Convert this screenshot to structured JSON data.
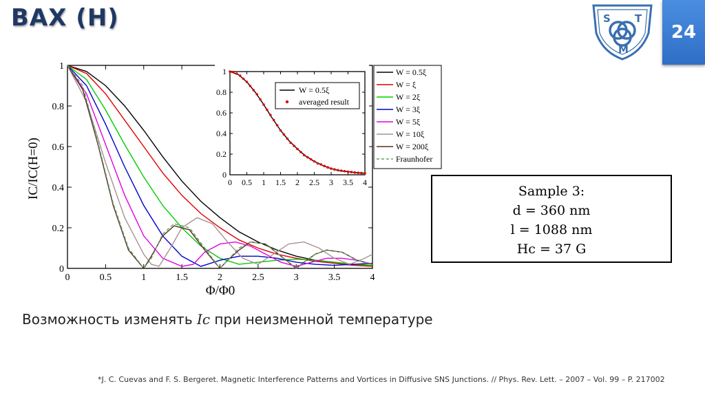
{
  "slide": {
    "title": "ВАХ (H)",
    "number": "24"
  },
  "logo": {
    "letters": [
      "S",
      "T",
      "M"
    ]
  },
  "sample": {
    "line1": "Sample 3:",
    "d": "d = 360 nm",
    "l": "l = 1088 nm",
    "h": "Hc = 37 G"
  },
  "caption": {
    "before": "Возможность изменять ",
    "symbol": "Ic",
    "after": " при неизменной температуре"
  },
  "reference": "*J. C. Cuevas and F. S. Bergeret. Magnetic Interference Patterns and Vortices in Diffusive SNS Junctions. // Phys. Rev. Lett. – 2007 – Vol. 99 – P. 217002",
  "colors": {
    "accent": "#3a7bd5",
    "title": "#1f3864"
  },
  "chart_data": [
    {
      "type": "line",
      "xlabel": "Φ/Φ0",
      "ylabel": "IC/IC(H=0)",
      "xlim": [
        0,
        4
      ],
      "ylim": [
        0,
        1
      ],
      "xticks": [
        "0",
        "0.5",
        "1",
        "1.5",
        "2",
        "2.5",
        "3",
        "3.5",
        "4"
      ],
      "yticks": [
        "0",
        "0.2",
        "0.4",
        "0.6",
        "0.8",
        "1"
      ],
      "legend_position": "right-outside",
      "series": [
        {
          "name": "W = 0.5ξ",
          "color": "#000000",
          "dash": false,
          "x": [
            0,
            0.25,
            0.5,
            0.75,
            1,
            1.25,
            1.5,
            1.75,
            2,
            2.25,
            2.5,
            2.75,
            3,
            3.25,
            3.5,
            3.75,
            4
          ],
          "y": [
            1,
            0.97,
            0.9,
            0.8,
            0.68,
            0.55,
            0.43,
            0.33,
            0.25,
            0.18,
            0.13,
            0.09,
            0.06,
            0.04,
            0.03,
            0.02,
            0.015
          ]
        },
        {
          "name": "W = ξ",
          "color": "#e00000",
          "dash": false,
          "x": [
            0,
            0.25,
            0.5,
            0.75,
            1,
            1.25,
            1.5,
            1.75,
            2,
            2.25,
            2.5,
            2.75,
            3,
            3.25,
            3.5,
            3.75,
            4
          ],
          "y": [
            1,
            0.96,
            0.86,
            0.73,
            0.6,
            0.47,
            0.36,
            0.27,
            0.2,
            0.14,
            0.1,
            0.07,
            0.05,
            0.035,
            0.025,
            0.015,
            0.01
          ]
        },
        {
          "name": "W = 2ξ",
          "color": "#00cc00",
          "dash": false,
          "x": [
            0,
            0.25,
            0.5,
            0.75,
            1,
            1.25,
            1.5,
            1.75,
            2,
            2.25,
            2.5,
            2.75,
            3,
            3.25,
            3.5,
            3.75,
            4
          ],
          "y": [
            1,
            0.93,
            0.78,
            0.61,
            0.45,
            0.31,
            0.2,
            0.11,
            0.05,
            0.02,
            0.03,
            0.04,
            0.045,
            0.04,
            0.03,
            0.02,
            0.015
          ]
        },
        {
          "name": "W = 3ξ",
          "color": "#0000cc",
          "dash": false,
          "x": [
            0,
            0.25,
            0.5,
            0.75,
            1,
            1.25,
            1.5,
            1.75,
            2,
            2.25,
            2.5,
            2.75,
            3,
            3.25,
            3.5,
            3.75,
            4
          ],
          "y": [
            1,
            0.9,
            0.71,
            0.5,
            0.31,
            0.16,
            0.06,
            0.01,
            0.04,
            0.06,
            0.06,
            0.05,
            0.03,
            0.02,
            0.015,
            0.02,
            0.025
          ]
        },
        {
          "name": "W = 5ξ",
          "color": "#e000e0",
          "dash": false,
          "x": [
            0,
            0.25,
            0.5,
            0.75,
            1,
            1.25,
            1.5,
            1.65,
            1.8,
            2,
            2.2,
            2.4,
            2.6,
            2.8,
            3,
            3.2,
            3.4,
            3.6,
            3.8,
            4
          ],
          "y": [
            1,
            0.86,
            0.61,
            0.36,
            0.16,
            0.05,
            0.01,
            0.02,
            0.08,
            0.12,
            0.13,
            0.11,
            0.07,
            0.03,
            0.01,
            0.03,
            0.05,
            0.05,
            0.04,
            0.02
          ]
        },
        {
          "name": "W = 10ξ",
          "color": "#a89090",
          "dash": false,
          "x": [
            0,
            0.25,
            0.5,
            0.75,
            1,
            1.1,
            1.2,
            1.35,
            1.5,
            1.7,
            1.9,
            2.1,
            2.3,
            2.5,
            2.7,
            2.9,
            3.1,
            3.3,
            3.5,
            3.7,
            3.9,
            4
          ],
          "y": [
            1,
            0.82,
            0.52,
            0.25,
            0.07,
            0.02,
            0.01,
            0.1,
            0.2,
            0.25,
            0.22,
            0.13,
            0.05,
            0.02,
            0.07,
            0.12,
            0.13,
            0.1,
            0.05,
            0.02,
            0.05,
            0.07
          ]
        },
        {
          "name": "W = 200ξ",
          "color": "#5a2a2a",
          "dash": false,
          "x": [
            0,
            0.2,
            0.4,
            0.6,
            0.8,
            1,
            1.1,
            1.25,
            1.4,
            1.6,
            1.8,
            2,
            2.1,
            2.25,
            2.4,
            2.6,
            2.8,
            3,
            3.1,
            3.25,
            3.4,
            3.6,
            3.8,
            4
          ],
          "y": [
            1,
            0.88,
            0.61,
            0.31,
            0.09,
            0.0,
            0.06,
            0.16,
            0.21,
            0.19,
            0.09,
            0.0,
            0.04,
            0.09,
            0.13,
            0.12,
            0.06,
            0.0,
            0.03,
            0.07,
            0.09,
            0.08,
            0.04,
            0.02
          ]
        },
        {
          "name": "Fraunhofer",
          "color": "#60a060",
          "dash": true,
          "x": [
            0,
            0.2,
            0.4,
            0.6,
            0.8,
            1,
            1.1,
            1.25,
            1.4,
            1.6,
            1.8,
            2,
            2.1,
            2.25,
            2.4,
            2.6,
            2.8,
            3,
            3.1,
            3.25,
            3.4,
            3.6,
            3.8,
            4
          ],
          "y": [
            1,
            0.9,
            0.62,
            0.32,
            0.1,
            0.0,
            0.05,
            0.17,
            0.22,
            0.2,
            0.1,
            0.0,
            0.04,
            0.1,
            0.13,
            0.12,
            0.06,
            0.0,
            0.03,
            0.07,
            0.09,
            0.08,
            0.04,
            0.02
          ]
        }
      ]
    },
    {
      "type": "line",
      "xlim": [
        0,
        4
      ],
      "ylim": [
        0,
        1
      ],
      "xticks": [
        "0",
        "0.5",
        "1",
        "1.5",
        "2",
        "2.5",
        "3",
        "3.5",
        "4"
      ],
      "yticks": [
        "0",
        "0.2",
        "0.4",
        "0.6",
        "0.8",
        "1"
      ],
      "legend_position": "top-right",
      "series": [
        {
          "name": "W = 0.5ξ",
          "color": "#000000",
          "x": [
            0,
            0.25,
            0.5,
            0.75,
            1,
            1.25,
            1.5,
            1.75,
            2,
            2.25,
            2.5,
            2.75,
            3,
            3.25,
            3.5,
            3.75,
            4
          ],
          "y": [
            1,
            0.97,
            0.9,
            0.8,
            0.68,
            0.55,
            0.43,
            0.33,
            0.25,
            0.18,
            0.13,
            0.09,
            0.06,
            0.04,
            0.03,
            0.02,
            0.015
          ]
        },
        {
          "name": "averaged result",
          "color": "#e00000",
          "marker": "dot",
          "x": [
            0,
            0.1,
            0.2,
            0.3,
            0.4,
            0.5,
            0.6,
            0.7,
            0.8,
            0.9,
            1,
            1.1,
            1.2,
            1.3,
            1.4,
            1.5,
            1.6,
            1.7,
            1.8,
            1.9,
            2,
            2.1,
            2.2,
            2.3,
            2.4,
            2.5,
            2.6,
            2.7,
            2.8,
            2.9,
            3,
            3.1,
            3.2,
            3.3,
            3.4,
            3.5,
            3.6,
            3.7,
            3.8,
            3.9,
            4
          ],
          "y": [
            1,
            0.995,
            0.98,
            0.96,
            0.93,
            0.9,
            0.86,
            0.82,
            0.78,
            0.73,
            0.68,
            0.63,
            0.58,
            0.53,
            0.48,
            0.43,
            0.39,
            0.35,
            0.31,
            0.28,
            0.25,
            0.22,
            0.19,
            0.17,
            0.15,
            0.13,
            0.11,
            0.1,
            0.085,
            0.072,
            0.06,
            0.052,
            0.045,
            0.04,
            0.035,
            0.03,
            0.026,
            0.022,
            0.019,
            0.017,
            0.015
          ]
        }
      ]
    }
  ]
}
